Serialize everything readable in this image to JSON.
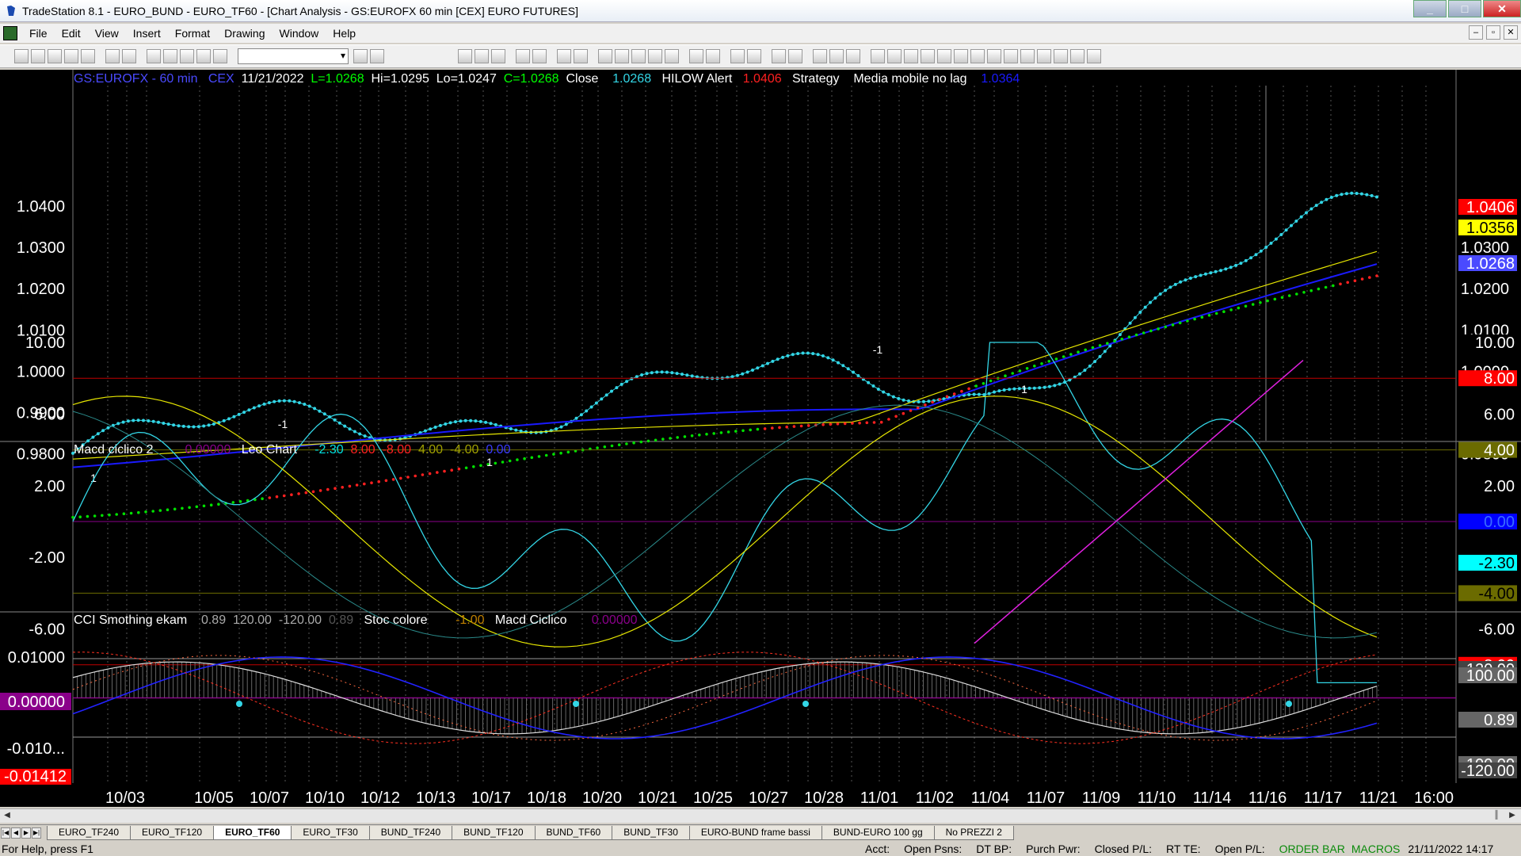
{
  "window": {
    "title": "TradeStation 8.1 - EURO_BUND - EURO_TF60 - [Chart Analysis - GS:EUROFX  60 min  [CEX] EURO FUTURES]",
    "buttons": [
      "_",
      "□",
      "✕"
    ]
  },
  "menu": [
    "File",
    "Edit",
    "View",
    "Insert",
    "Format",
    "Drawing",
    "Window",
    "Help"
  ],
  "mdi_buttons": [
    "–",
    "▫",
    "✕"
  ],
  "price_header": {
    "symbol": "GS:EUROFX - 60 min",
    "exchange": "CEX",
    "date": "11/21/2022",
    "last": "L=1.0268",
    "high": "Hi=1.0295",
    "low": "Lo=1.0247",
    "close": "C=1.0268",
    "close_label": "Close",
    "close_value": "1.0268",
    "hilow_label": "HILOW Alert",
    "hilow_value": "1.0406",
    "strategy_label": "Strategy",
    "ma_label": "Media mobile no lag",
    "ma_value": "1.0364"
  },
  "macd_header": {
    "name": "Macd ciclico 2",
    "v0": "0.00000",
    "leo": "Leo Chart",
    "vals": [
      "-2.30",
      "8.00",
      "-8.00",
      "4.00",
      "-4.00",
      "0.00"
    ]
  },
  "cci_header": {
    "name": "CCI Smothing ekam",
    "vals": [
      "0.89",
      "120.00",
      "-120.00",
      "0.89"
    ],
    "stoc": "Stoc colore",
    "stoc_val": "-1.00",
    "macd": "Macd Ciclico",
    "macd_val": "0.00000"
  },
  "price_axis": [
    "1.0400",
    "1.0300",
    "1.0200",
    "1.0100",
    "1.0000",
    "0.9900",
    "0.9800"
  ],
  "price_axis_right": [
    "1.0300",
    "1.0200",
    "1.0100",
    "1.0000",
    "0.9900",
    "0.9800"
  ],
  "price_tags": [
    {
      "text": "1.0406",
      "bg": "#ff0000",
      "fg": "#ffffff"
    },
    {
      "text": "1.0356",
      "bg": "#ffff00",
      "fg": "#000000"
    },
    {
      "text": "1.0268",
      "bg": "#4a4aff",
      "fg": "#ffffff"
    }
  ],
  "macd_axis": [
    "10.00",
    "6.00",
    "2.00",
    "-2.00",
    "-6.00"
  ],
  "macd_tags": [
    {
      "text": "10.00",
      "bg": "#000000",
      "fg": "#ffffff"
    },
    {
      "text": "8.00",
      "bg": "#ff0000",
      "fg": "#ffffff"
    },
    {
      "text": "6.00",
      "bg": "#000000",
      "fg": "#ffffff"
    },
    {
      "text": "4.00",
      "bg": "#6b6b00",
      "fg": "#ffffff"
    },
    {
      "text": "2.00",
      "bg": "#000000",
      "fg": "#ffffff"
    },
    {
      "text": "0.00",
      "bg": "#0000ff",
      "fg": "#3a6cff"
    },
    {
      "text": "-2.30",
      "bg": "#00ffff",
      "fg": "#000000"
    },
    {
      "text": "-4.00",
      "bg": "#6b6b00",
      "fg": "#000000"
    },
    {
      "text": "-6.00",
      "bg": "#000000",
      "fg": "#ffffff"
    },
    {
      "text": "-8.00",
      "bg": "#ff0000",
      "fg": "#ffffff"
    }
  ],
  "cci_axis": [
    "0.01000",
    "0.00000",
    "-0.010..."
  ],
  "cci_axis_bottom": "-0.01412",
  "cci_tags": [
    "120.00",
    "100.00",
    "0.89",
    "-100.00",
    "-120.00"
  ],
  "dates": [
    "10/03",
    "10/05",
    "10/07",
    "10/10",
    "10/12",
    "10/13",
    "10/17",
    "10/18",
    "10/20",
    "10/21",
    "10/25",
    "10/27",
    "10/28",
    "11/01",
    "11/02",
    "11/04",
    "11/07",
    "11/09",
    "11/10",
    "11/14",
    "11/16",
    "11/17",
    "11/21",
    "16:00"
  ],
  "signals": [
    {
      "text": "1"
    },
    {
      "text": "-1"
    },
    {
      "text": "1"
    },
    {
      "text": "-1"
    },
    {
      "text": "1"
    }
  ],
  "tabs": [
    "EURO_TF240",
    "EURO_TF120",
    "EURO_TF60",
    "EURO_TF30",
    "BUND_TF240",
    "BUND_TF120",
    "BUND_TF60",
    "BUND_TF30",
    "EURO-BUND frame bassi",
    "BUND-EURO 100 gg",
    "No PREZZI 2"
  ],
  "active_tab": "EURO_TF60",
  "status": {
    "help": "For Help, press F1",
    "acct": "Acct:",
    "open_psns": "Open Psns:",
    "dt_bp": "DT BP:",
    "purch_pwr": "Purch Pwr:",
    "closed_pl": "Closed P/L:",
    "rt_te": "RT TE:",
    "open_pl": "Open P/L:",
    "order_bar": "ORDER BAR",
    "macros": "MACROS",
    "datetime": "21/11/2022 14:17"
  },
  "colors": {
    "price": "#33d6e6",
    "blue_ma": "#1a1aff",
    "yellow_ma": "#e6e600",
    "sar_green": "#00e000",
    "sar_red": "#ff2020",
    "band_red": "#c00000",
    "band_olive": "#6b6b00",
    "band_purple": "#8a008a"
  }
}
